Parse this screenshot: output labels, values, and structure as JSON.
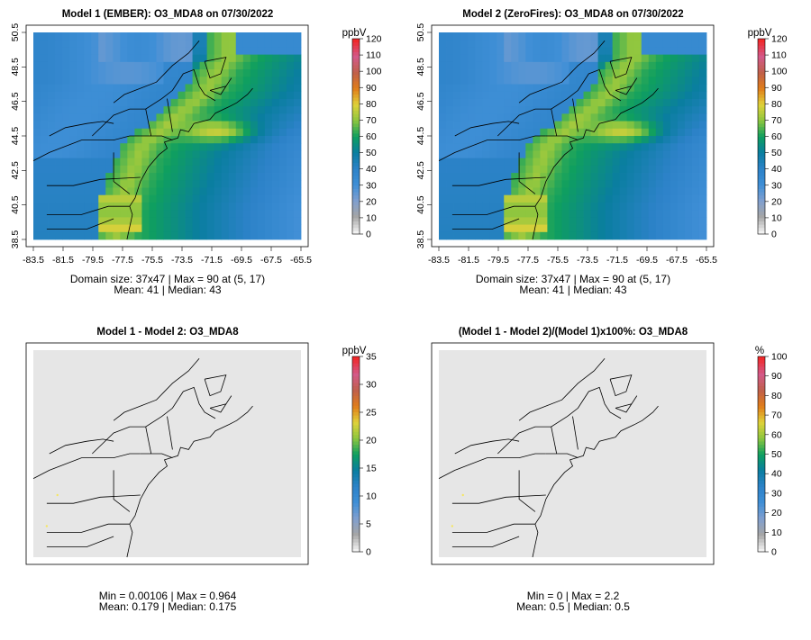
{
  "chart_data": [
    {
      "type": "heatmap",
      "title": "Model 1 (EMBER): O3_MDA8 on 07/30/2022",
      "colorbar_unit": "ppbV",
      "colorbar_ticks": [
        0,
        10,
        20,
        30,
        40,
        50,
        60,
        70,
        80,
        90,
        100,
        110,
        120
      ],
      "colorbar_range": [
        0,
        120
      ],
      "x_ticks": [
        "-83.5",
        "-81.5",
        "-79.5",
        "-77.5",
        "-75.5",
        "-73.5",
        "-71.5",
        "-69.5",
        "-67.5",
        "-65.5"
      ],
      "y_ticks": [
        "38.5",
        "40.5",
        "42.5",
        "44.5",
        "46.5",
        "48.5",
        "50.5"
      ],
      "xlim": [
        -83.5,
        -65.5
      ],
      "ylim": [
        38.5,
        50.5
      ],
      "stats_line1": "Domain size: 37x47 | Max = 90 at (5, 17)",
      "stats_line2": "Mean: 41 |  Median: 43",
      "domain_size": "37x47",
      "max": 90,
      "max_location": [
        5,
        17
      ],
      "mean": 41,
      "median": 43
    },
    {
      "type": "heatmap",
      "title": "Model 2 (ZeroFires): O3_MDA8 on 07/30/2022",
      "colorbar_unit": "ppbV",
      "colorbar_ticks": [
        0,
        10,
        20,
        30,
        40,
        50,
        60,
        70,
        80,
        90,
        100,
        110,
        120
      ],
      "colorbar_range": [
        0,
        120
      ],
      "x_ticks": [
        "-83.5",
        "-81.5",
        "-79.5",
        "-77.5",
        "-75.5",
        "-73.5",
        "-71.5",
        "-69.5",
        "-67.5",
        "-65.5"
      ],
      "y_ticks": [
        "38.5",
        "40.5",
        "42.5",
        "44.5",
        "46.5",
        "48.5",
        "50.5"
      ],
      "xlim": [
        -83.5,
        -65.5
      ],
      "ylim": [
        38.5,
        50.5
      ],
      "stats_line1": "Domain size: 37x47 | Max = 90 at (5, 17)",
      "stats_line2": "Mean: 41 |  Median: 43",
      "domain_size": "37x47",
      "max": 90,
      "max_location": [
        5,
        17
      ],
      "mean": 41,
      "median": 43
    },
    {
      "type": "heatmap",
      "title": "Model 1 - Model 2: O3_MDA8",
      "colorbar_unit": "ppbV",
      "colorbar_ticks": [
        0,
        5,
        10,
        15,
        20,
        25,
        30,
        35
      ],
      "colorbar_range": [
        0,
        35
      ],
      "stats_line1": "Min = 0.00106 | Max = 0.964",
      "stats_line2": "Mean: 0.179 |  Median: 0.175",
      "min": 0.00106,
      "max": 0.964,
      "mean": 0.179,
      "median": 0.175
    },
    {
      "type": "heatmap",
      "title": "(Model 1 - Model 2)/(Model 1)x100%: O3_MDA8",
      "colorbar_unit": "%",
      "colorbar_ticks": [
        0,
        10,
        20,
        30,
        40,
        50,
        60,
        70,
        80,
        90,
        100
      ],
      "colorbar_range": [
        0,
        100
      ],
      "stats_line1": "Min = 0 | Max = 2.2",
      "stats_line2": "Mean: 0.5 |  Median: 0.5",
      "min": 0,
      "max": 2.2,
      "mean": 0.5,
      "median": 0.5
    }
  ],
  "colors": {
    "colorbar_stops": [
      "#f2f2f2",
      "#a6a6a6",
      "#7f9fcf",
      "#3f8fd6",
      "#2c82c8",
      "#0a7ea0",
      "#0f9f5f",
      "#8dc63f",
      "#e0d23a",
      "#e07d1a",
      "#c0604b",
      "#d35a8a",
      "#f0292b"
    ],
    "map_border": "#000000",
    "difference_background": "#e6e6e6"
  }
}
